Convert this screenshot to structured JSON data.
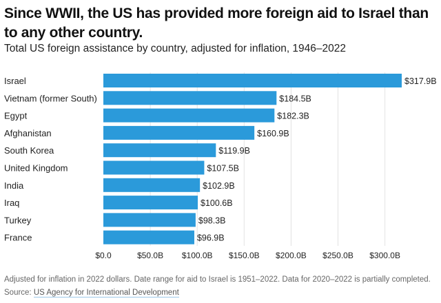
{
  "chart_data": {
    "type": "bar",
    "orientation": "horizontal",
    "title": "Since WWII, the US has provided more foreign aid to Israel than to any other country.",
    "subtitle": "Total US foreign assistance by country, adjusted for inflation, 1946–2022",
    "categories": [
      "Israel",
      "Vietnam (former South)",
      "Egypt",
      "Afghanistan",
      "South Korea",
      "United Kingdom",
      "India",
      "Iraq",
      "Turkey",
      "France"
    ],
    "values": [
      317.9,
      184.5,
      182.3,
      160.9,
      119.9,
      107.5,
      102.9,
      100.6,
      98.3,
      96.9
    ],
    "value_labels": [
      "$317.9B",
      "$184.5B",
      "$182.3B",
      "$160.9B",
      "$119.9B",
      "$107.5B",
      "$102.9B",
      "$100.6B",
      "$98.3B",
      "$96.9B"
    ],
    "units": "billion USD (2022 dollars)",
    "xlabel": "",
    "ylabel": "",
    "xlim": [
      0,
      317.9
    ],
    "x_ticks": [
      0,
      50,
      100,
      150,
      200,
      250,
      300
    ],
    "x_tick_labels": [
      "$0.0",
      "$50.0B",
      "$100.0B",
      "$150.0B",
      "$200.0B",
      "$250.0B",
      "$300.0B"
    ],
    "grid": true,
    "legend": "none",
    "bar_color": "#2b9ada",
    "grid_color": "#e2e2e2"
  },
  "footer": {
    "note": "Adjusted for inflation in 2022 dollars. Date range for aid to Israel is 1951–2022. Data for 2020–2022 is partially completed.",
    "source_prefix": "Source: ",
    "source_link": "US Agency for International Development"
  }
}
